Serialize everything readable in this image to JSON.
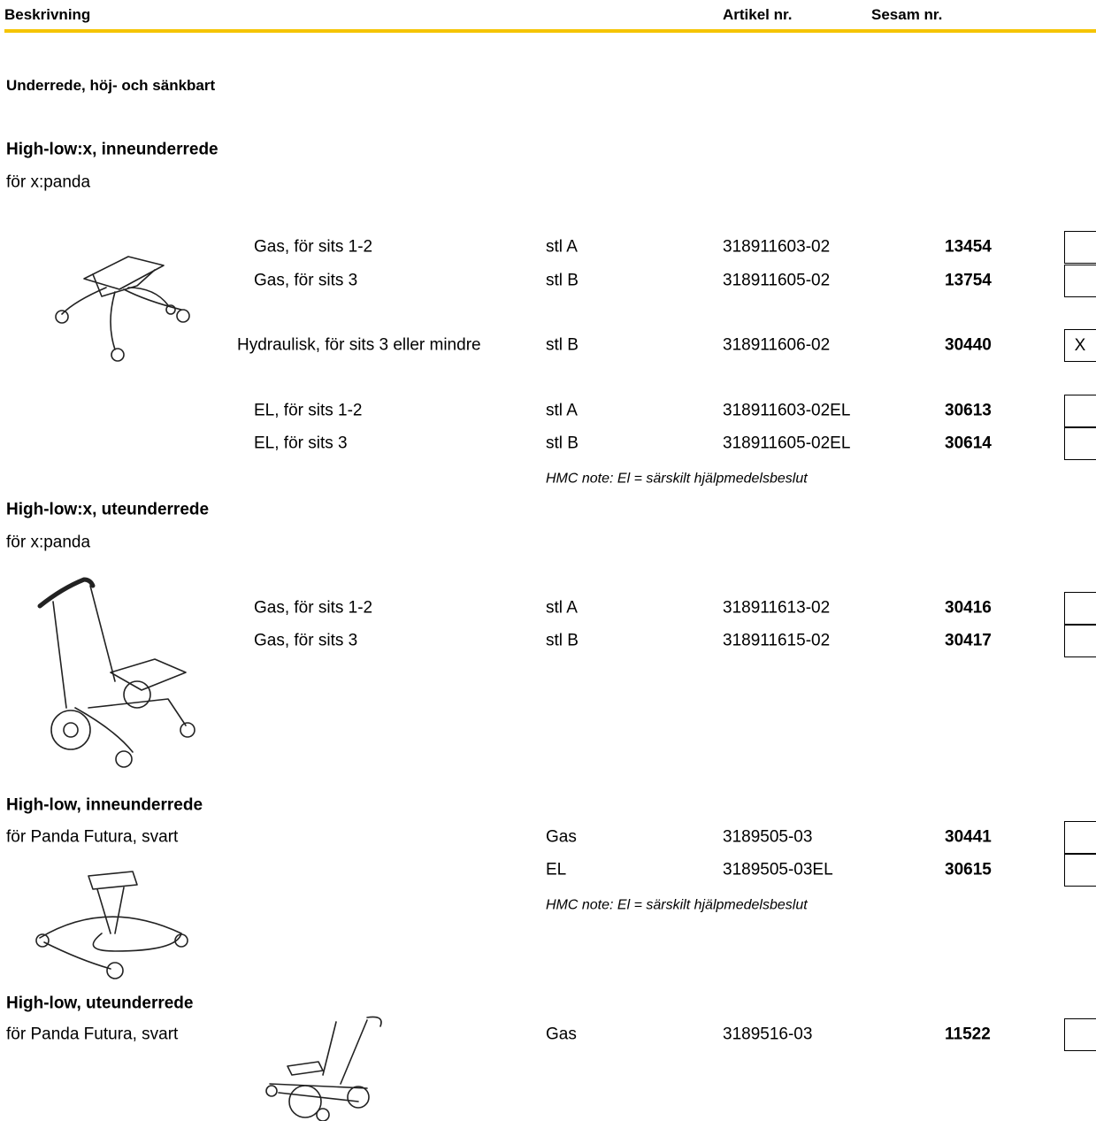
{
  "header": {
    "description": "Beskrivning",
    "article": "Artikel nr.",
    "sesam": "Sesam nr."
  },
  "category": "Underrede, höj- och sänkbart",
  "sections": [
    {
      "title": "High-low:x, inneunderrede",
      "subtitle": "för x:panda",
      "rows": [
        {
          "description": "Gas, för sits 1-2",
          "size": "stl A",
          "article": "318911603-02",
          "sesam": "13454"
        },
        {
          "description": "Gas, för sits 3",
          "size": "stl B",
          "article": "318911605-02",
          "sesam": "13754"
        },
        {
          "description": "Hydraulisk, för sits 3 eller mindre",
          "size": "stl B",
          "article": "318911606-02",
          "sesam": "30440",
          "mark": "X"
        },
        {
          "description": "EL, för sits 1-2",
          "size": "stl A",
          "article": "318911603-02EL",
          "sesam": "30613"
        },
        {
          "description": "EL, för sits 3",
          "size": "stl B",
          "article": "318911605-02EL",
          "sesam": "30614"
        }
      ],
      "note": "HMC note: El = särskilt hjälpmedelsbeslut"
    },
    {
      "title": "High-low:x, uteunderrede",
      "subtitle": "för x:panda",
      "rows": [
        {
          "description": "Gas, för sits 1-2",
          "size": "stl A",
          "article": "318911613-02",
          "sesam": "30416"
        },
        {
          "description": "Gas, för sits 3",
          "size": "stl B",
          "article": "318911615-02",
          "sesam": "30417"
        }
      ]
    },
    {
      "title": "High-low, inneunderrede",
      "subtitle": "för Panda Futura, svart",
      "rows": [
        {
          "size": "Gas",
          "article": "3189505-03",
          "sesam": "30441"
        },
        {
          "size": "EL",
          "article": "3189505-03EL",
          "sesam": "30615"
        }
      ],
      "note": "HMC note: El = särskilt hjälpmedelsbeslut"
    },
    {
      "title": "High-low, uteunderrede",
      "subtitle": "för Panda Futura, svart",
      "rows": [
        {
          "size": "Gas",
          "article": "3189516-03",
          "sesam": "11522"
        }
      ]
    }
  ]
}
